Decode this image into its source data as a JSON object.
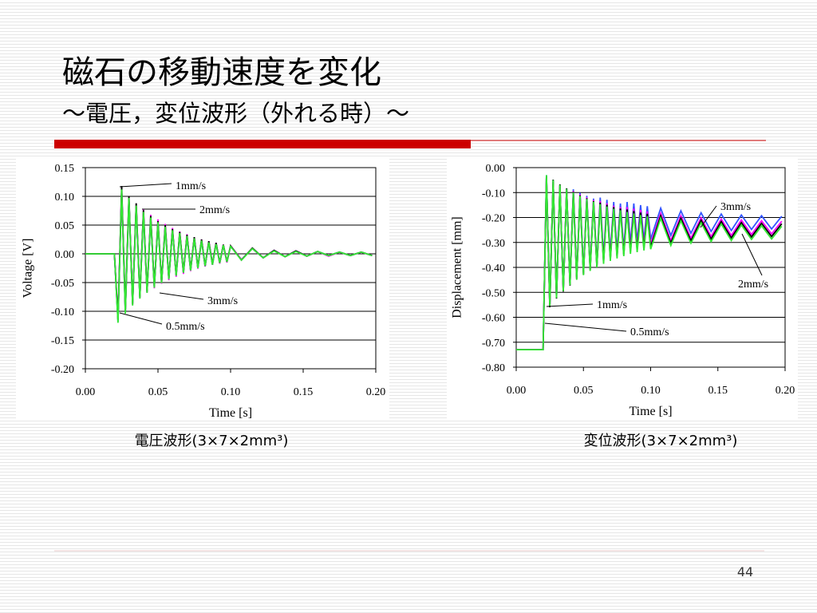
{
  "slide": {
    "title": "磁石の移動速度を変化",
    "subtitle": "～電圧，変位波形（外れる時）～",
    "page_number": "44"
  },
  "chart_data": [
    {
      "type": "line",
      "caption": "電圧波形(3×7×2mm³)",
      "x_label": "Time [s]",
      "y_label": "Voltage [V]",
      "xlim": [
        0,
        0.2
      ],
      "ylim": [
        -0.2,
        0.15
      ],
      "grid": true,
      "xticks": [
        {
          "value": 0,
          "label": "0.00"
        },
        {
          "value": 0.05,
          "label": "0.05"
        },
        {
          "value": 0.1,
          "label": "0.10"
        },
        {
          "value": 0.15,
          "label": "0.15"
        },
        {
          "value": 0.2,
          "label": "0.20"
        }
      ],
      "yticks": [
        {
          "value": 0.15,
          "label": "0.15"
        },
        {
          "value": 0.1,
          "label": "0.10"
        },
        {
          "value": 0.05,
          "label": "0.05"
        },
        {
          "value": 0,
          "label": "0.00"
        },
        {
          "value": -0.05,
          "label": "-0.05"
        },
        {
          "value": -0.1,
          "label": "-0.10"
        },
        {
          "value": -0.15,
          "label": "-0.15"
        },
        {
          "value": -0.2,
          "label": "-0.20"
        }
      ],
      "x": [
        0,
        0.02,
        0.0225,
        0.025,
        0.0275,
        0.03,
        0.0325,
        0.035,
        0.0375,
        0.04,
        0.0425,
        0.045,
        0.0475,
        0.05,
        0.0525,
        0.055,
        0.0575,
        0.06,
        0.0625,
        0.065,
        0.0675,
        0.07,
        0.0725,
        0.075,
        0.0775,
        0.08,
        0.0825,
        0.085,
        0.0875,
        0.09,
        0.0925,
        0.095,
        0.0975,
        0.1,
        0.1075,
        0.115,
        0.1225,
        0.13,
        0.1375,
        0.145,
        0.1525,
        0.16,
        0.1675,
        0.175,
        0.1825,
        0.19,
        0.1975
      ],
      "series": [
        {
          "name": "0.5mm/s",
          "color": "#33e833",
          "values": [
            0,
            0,
            -0.12,
            0.112,
            -0.104,
            0.097,
            -0.09,
            0.084,
            -0.078,
            0.073,
            -0.068,
            0.063,
            -0.059,
            0.055,
            -0.051,
            0.047,
            -0.044,
            0.041,
            -0.038,
            0.036,
            -0.033,
            0.031,
            -0.029,
            0.027,
            -0.025,
            0.023,
            -0.021,
            0.02,
            -0.019,
            0.017,
            -0.016,
            0.015,
            -0.014,
            0.013,
            -0.011,
            0.009,
            -0.007,
            0.005,
            -0.005,
            0.004,
            -0.004,
            0.004,
            -0.003,
            0.003,
            -0.003,
            0.003,
            -0.003
          ]
        },
        {
          "name": "1mm/s",
          "color": "#000000",
          "values": [
            0,
            0,
            -0.115,
            0.118,
            -0.1,
            0.1,
            -0.088,
            0.088,
            -0.076,
            0.076,
            -0.066,
            0.066,
            -0.057,
            0.057,
            -0.05,
            0.05,
            -0.043,
            0.043,
            -0.037,
            0.038,
            -0.032,
            0.033,
            -0.028,
            0.029,
            -0.024,
            0.025,
            -0.021,
            0.022,
            -0.018,
            0.019,
            -0.016,
            0.016,
            -0.014,
            0.014,
            -0.011,
            0.01,
            -0.007,
            0.006,
            -0.005,
            0.005,
            -0.004,
            0.004,
            -0.003,
            0.003,
            -0.003,
            0.003,
            -0.003
          ]
        },
        {
          "name": "2mm/s",
          "color": "#ff00ff",
          "values": [
            0,
            0,
            -0.11,
            0.11,
            -0.1,
            0.095,
            -0.088,
            0.086,
            -0.077,
            0.077,
            -0.068,
            0.068,
            -0.06,
            0.06,
            -0.052,
            0.052,
            -0.046,
            0.045,
            -0.04,
            0.039,
            -0.035,
            0.034,
            -0.03,
            0.029,
            -0.026,
            0.025,
            -0.022,
            0.022,
            -0.019,
            0.019,
            -0.017,
            0.016,
            -0.015,
            0.014,
            -0.01,
            0.009,
            -0.007,
            0.006,
            -0.005,
            0.005,
            -0.004,
            0.004,
            -0.004,
            0.003,
            -0.003,
            0.003,
            -0.003
          ]
        },
        {
          "name": "3mm/s",
          "color": "#3355ff",
          "values": [
            0,
            0,
            -0.118,
            0.11,
            -0.102,
            0.094,
            -0.086,
            0.08,
            -0.075,
            0.07,
            -0.066,
            0.062,
            -0.058,
            0.054,
            -0.05,
            0.047,
            -0.044,
            0.041,
            -0.038,
            0.035,
            -0.033,
            0.03,
            -0.029,
            0.027,
            -0.025,
            0.023,
            -0.022,
            0.02,
            -0.019,
            0.018,
            -0.016,
            0.015,
            -0.014,
            0.013,
            -0.01,
            0.009,
            -0.007,
            0.006,
            -0.005,
            0.005,
            -0.004,
            0.004,
            -0.003,
            0.003,
            -0.003,
            0.003,
            -0.003
          ]
        }
      ]
    },
    {
      "type": "line",
      "caption": "変位波形(3×7×2mm³)",
      "x_label": "Time [s]",
      "y_label": "Displacement [mm]",
      "xlim": [
        0,
        0.2
      ],
      "ylim": [
        -0.8,
        0
      ],
      "grid": true,
      "xticks": [
        {
          "value": 0,
          "label": "0.00"
        },
        {
          "value": 0.05,
          "label": "0.05"
        },
        {
          "value": 0.1,
          "label": "0.10"
        },
        {
          "value": 0.15,
          "label": "0.15"
        },
        {
          "value": 0.2,
          "label": "0.20"
        }
      ],
      "yticks": [
        {
          "value": 0,
          "label": "0.00"
        },
        {
          "value": -0.1,
          "label": "-0.10"
        },
        {
          "value": -0.2,
          "label": "-0.20"
        },
        {
          "value": -0.3,
          "label": "-0.30"
        },
        {
          "value": -0.4,
          "label": "-0.40"
        },
        {
          "value": -0.5,
          "label": "-0.50"
        },
        {
          "value": -0.6,
          "label": "-0.60"
        },
        {
          "value": -0.7,
          "label": "-0.70"
        },
        {
          "value": -0.8,
          "label": "-0.80"
        }
      ],
      "x": [
        0,
        0.02,
        0.0225,
        0.025,
        0.0275,
        0.03,
        0.0325,
        0.035,
        0.0375,
        0.04,
        0.0425,
        0.045,
        0.0475,
        0.05,
        0.0525,
        0.055,
        0.0575,
        0.06,
        0.0625,
        0.065,
        0.0675,
        0.07,
        0.0725,
        0.075,
        0.0775,
        0.08,
        0.0825,
        0.085,
        0.0875,
        0.09,
        0.0925,
        0.095,
        0.0975,
        0.1,
        0.1075,
        0.115,
        0.1225,
        0.13,
        0.1375,
        0.145,
        0.1525,
        0.16,
        0.1675,
        0.175,
        0.1825,
        0.19,
        0.1975
      ],
      "series": [
        {
          "name": "0.5mm/s",
          "color": "#33e833",
          "values": [
            -0.73,
            -0.73,
            -0.03,
            -0.554,
            -0.05,
            -0.523,
            -0.069,
            -0.495,
            -0.085,
            -0.471,
            -0.1,
            -0.45,
            -0.114,
            -0.431,
            -0.126,
            -0.414,
            -0.137,
            -0.4,
            -0.147,
            -0.386,
            -0.156,
            -0.374,
            -0.165,
            -0.364,
            -0.171,
            -0.355,
            -0.178,
            -0.346,
            -0.184,
            -0.339,
            -0.19,
            -0.332,
            -0.195,
            -0.327,
            -0.203,
            -0.312,
            -0.213,
            -0.303,
            -0.221,
            -0.296,
            -0.226,
            -0.292,
            -0.23,
            -0.288,
            -0.233,
            -0.286,
            -0.235
          ]
        },
        {
          "name": "1mm/s",
          "color": "#000000",
          "values": [
            -0.73,
            -0.73,
            -0.035,
            -0.56,
            -0.048,
            -0.525,
            -0.067,
            -0.497,
            -0.083,
            -0.473,
            -0.097,
            -0.447,
            -0.111,
            -0.428,
            -0.123,
            -0.411,
            -0.134,
            -0.397,
            -0.14,
            -0.379,
            -0.149,
            -0.367,
            -0.158,
            -0.357,
            -0.164,
            -0.348,
            -0.168,
            -0.336,
            -0.174,
            -0.329,
            -0.18,
            -0.322,
            -0.185,
            -0.317,
            -0.193,
            -0.302,
            -0.203,
            -0.293,
            -0.211,
            -0.286,
            -0.216,
            -0.282,
            -0.22,
            -0.278,
            -0.223,
            -0.276,
            -0.225
          ]
        },
        {
          "name": "2mm/s",
          "color": "#ff00ff",
          "values": [
            -0.73,
            -0.73,
            -0.04,
            -0.55,
            -0.055,
            -0.52,
            -0.07,
            -0.49,
            -0.085,
            -0.468,
            -0.093,
            -0.443,
            -0.107,
            -0.424,
            -0.119,
            -0.407,
            -0.13,
            -0.393,
            -0.134,
            -0.373,
            -0.143,
            -0.361,
            -0.152,
            -0.351,
            -0.158,
            -0.342,
            -0.158,
            -0.326,
            -0.164,
            -0.319,
            -0.17,
            -0.312,
            -0.175,
            -0.307,
            -0.183,
            -0.292,
            -0.193,
            -0.283,
            -0.201,
            -0.276,
            -0.206,
            -0.272,
            -0.21,
            -0.268,
            -0.213,
            -0.266,
            -0.215
          ]
        },
        {
          "name": "3mm/s",
          "color": "#3355ff",
          "values": [
            -0.73,
            -0.73,
            -0.03,
            -0.554,
            -0.05,
            -0.523,
            -0.069,
            -0.495,
            -0.085,
            -0.471,
            -0.087,
            -0.437,
            -0.101,
            -0.418,
            -0.113,
            -0.401,
            -0.124,
            -0.387,
            -0.12,
            -0.359,
            -0.129,
            -0.347,
            -0.138,
            -0.337,
            -0.144,
            -0.328,
            -0.138,
            -0.306,
            -0.144,
            -0.299,
            -0.15,
            -0.292,
            -0.155,
            -0.287,
            -0.163,
            -0.272,
            -0.173,
            -0.263,
            -0.181,
            -0.256,
            -0.186,
            -0.252,
            -0.19,
            -0.248,
            -0.193,
            -0.246,
            -0.195
          ]
        }
      ]
    }
  ]
}
